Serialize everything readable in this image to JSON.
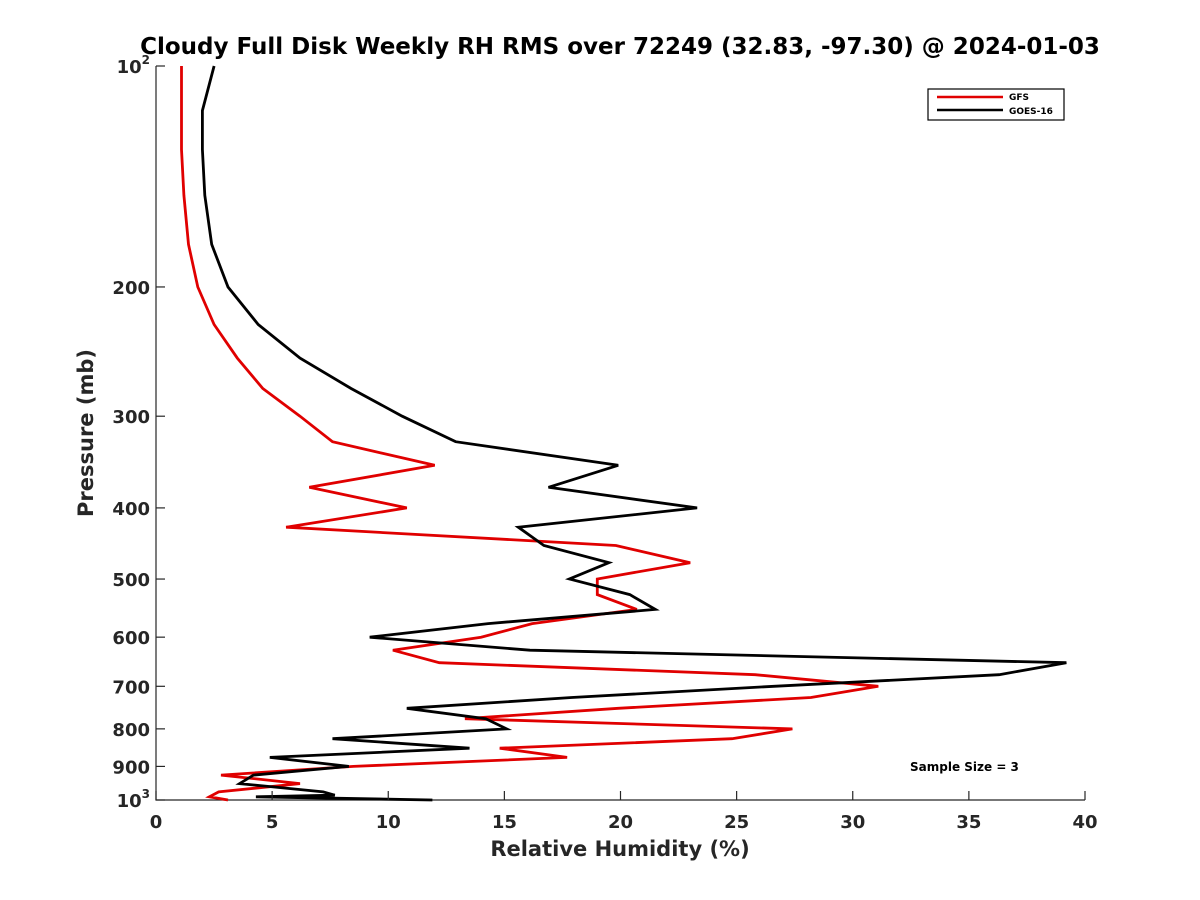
{
  "chart_data": {
    "type": "line",
    "title": "Cloudy Full Disk Weekly RH RMS over 72249 (32.83, -97.30) @ 2024-01-03",
    "xlabel": "Relative Humidity (%)",
    "ylabel": "Pressure (mb)",
    "xlim": [
      0,
      40
    ],
    "ylim": [
      100,
      1000
    ],
    "yscale": "log",
    "y_reversed": true,
    "grid": false,
    "legend_placement": "top-right",
    "x_ticks": [
      "0",
      "5",
      "10",
      "15",
      "20",
      "25",
      "30",
      "35",
      "40"
    ],
    "x_tick_values": [
      0,
      5,
      10,
      15,
      20,
      25,
      30,
      35,
      40
    ],
    "y_ticks": [
      {
        "value": 100,
        "base": "10",
        "exp": "2"
      },
      {
        "value": 200,
        "label": "200"
      },
      {
        "value": 300,
        "label": "300"
      },
      {
        "value": 400,
        "label": "400"
      },
      {
        "value": 500,
        "label": "500"
      },
      {
        "value": 600,
        "label": "600"
      },
      {
        "value": 700,
        "label": "700"
      },
      {
        "value": 800,
        "label": "800"
      },
      {
        "value": 900,
        "label": "900"
      },
      {
        "value": 1000,
        "base": "10",
        "exp": "3"
      }
    ],
    "annotation": "Sample Size = 3",
    "series": [
      {
        "name": "GFS",
        "color": "#e00000",
        "points": [
          [
            1.1,
            100
          ],
          [
            1.1,
            115
          ],
          [
            1.1,
            130
          ],
          [
            1.2,
            150
          ],
          [
            1.4,
            175
          ],
          [
            1.8,
            200
          ],
          [
            2.5,
            225
          ],
          [
            3.5,
            250
          ],
          [
            4.6,
            275
          ],
          [
            6.2,
            300
          ],
          [
            7.6,
            325
          ],
          [
            12.0,
            350
          ],
          [
            6.6,
            375
          ],
          [
            10.8,
            400
          ],
          [
            5.6,
            425
          ],
          [
            19.8,
            450
          ],
          [
            23.0,
            475
          ],
          [
            19.0,
            500
          ],
          [
            19.0,
            525
          ],
          [
            20.7,
            550
          ],
          [
            16.2,
            575
          ],
          [
            14.0,
            600
          ],
          [
            10.2,
            625
          ],
          [
            12.2,
            650
          ],
          [
            25.8,
            675
          ],
          [
            31.1,
            700
          ],
          [
            28.2,
            725
          ],
          [
            19.9,
            750
          ],
          [
            13.3,
            775
          ],
          [
            27.4,
            800
          ],
          [
            24.8,
            825
          ],
          [
            14.8,
            850
          ],
          [
            17.7,
            875
          ],
          [
            8.5,
            900
          ],
          [
            2.8,
            925
          ],
          [
            6.2,
            950
          ],
          [
            2.7,
            975
          ],
          [
            2.3,
            990
          ],
          [
            3.1,
            1000
          ]
        ]
      },
      {
        "name": "GOES-16",
        "color": "#000000",
        "points": [
          [
            2.5,
            100
          ],
          [
            2.0,
            115
          ],
          [
            2.0,
            130
          ],
          [
            2.1,
            150
          ],
          [
            2.4,
            175
          ],
          [
            3.1,
            200
          ],
          [
            4.4,
            225
          ],
          [
            6.2,
            250
          ],
          [
            8.4,
            275
          ],
          [
            10.6,
            300
          ],
          [
            12.9,
            325
          ],
          [
            19.9,
            350
          ],
          [
            16.9,
            375
          ],
          [
            23.3,
            400
          ],
          [
            15.6,
            425
          ],
          [
            16.7,
            450
          ],
          [
            19.5,
            475
          ],
          [
            17.8,
            500
          ],
          [
            20.4,
            525
          ],
          [
            21.5,
            550
          ],
          [
            14.3,
            575
          ],
          [
            9.2,
            600
          ],
          [
            16.1,
            625
          ],
          [
            39.2,
            650
          ],
          [
            36.3,
            675
          ],
          [
            26.6,
            700
          ],
          [
            17.9,
            725
          ],
          [
            10.8,
            750
          ],
          [
            14.2,
            775
          ],
          [
            15.1,
            800
          ],
          [
            7.6,
            825
          ],
          [
            13.5,
            850
          ],
          [
            4.9,
            875
          ],
          [
            8.3,
            900
          ],
          [
            4.2,
            925
          ],
          [
            3.6,
            950
          ],
          [
            7.2,
            975
          ],
          [
            7.7,
            985
          ],
          [
            4.3,
            990
          ],
          [
            11.9,
            1000
          ]
        ]
      }
    ]
  }
}
